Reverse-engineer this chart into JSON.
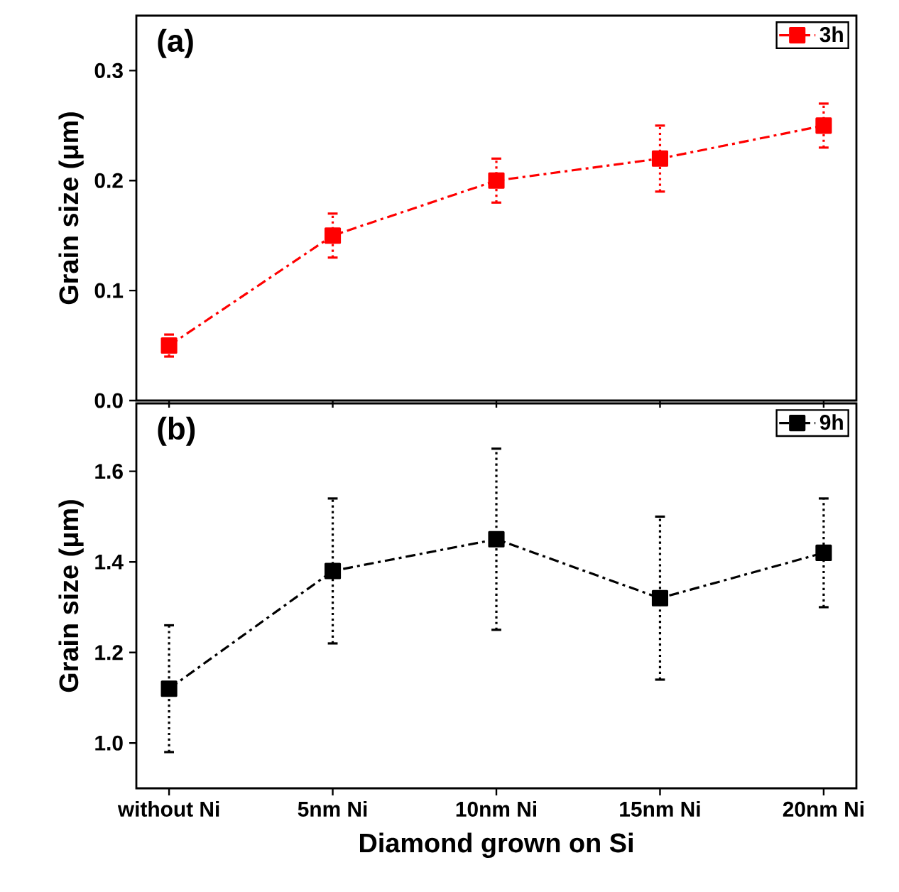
{
  "chart_data": [
    {
      "type": "line",
      "categories": [
        null,
        null,
        null,
        null,
        null
      ],
      "ylabel": "Grain size (μm)",
      "annotations": [
        "(a)"
      ],
      "ylim": [
        0,
        0.35
      ],
      "yticks": [
        {
          "value": 0,
          "label": "0.0"
        },
        0.1,
        0.2,
        0.3
      ],
      "tick_labels": "y",
      "legend": "top right",
      "marker": "square",
      "line_style": "dashdot",
      "series": [
        {
          "name": "3h",
          "color": "#ff0000",
          "values": [
            0.05,
            0.15,
            0.2,
            0.22,
            0.25
          ],
          "errors": [
            [
              0.04,
              0.06
            ],
            [
              0.13,
              0.17
            ],
            [
              0.18,
              0.22
            ],
            [
              0.19,
              0.25
            ],
            [
              0.23,
              0.27
            ]
          ]
        }
      ]
    },
    {
      "type": "line",
      "categories": [
        "without Ni",
        "5nm Ni",
        "10nm Ni",
        "15nm Ni",
        "20nm Ni"
      ],
      "xlabel": "Diamond grown on Si",
      "ylabel": "Grain size (μm)",
      "annotations": [
        "(b)"
      ],
      "ylim": [
        0.9,
        1.75
      ],
      "yticks": [
        {
          "value": 1,
          "label": "1.0"
        },
        1.2,
        1.4,
        1.6
      ],
      "legend": "top right",
      "marker": "square",
      "line_style": "dashdot",
      "series": [
        {
          "name": "9h",
          "color": "#000000",
          "values": [
            1.12,
            1.38,
            1.45,
            1.32,
            1.42
          ],
          "errors": [
            [
              0.98,
              1.26
            ],
            [
              1.22,
              1.54
            ],
            [
              1.25,
              1.65
            ],
            [
              1.14,
              1.5
            ],
            [
              1.3,
              1.54
            ]
          ]
        }
      ]
    }
  ]
}
